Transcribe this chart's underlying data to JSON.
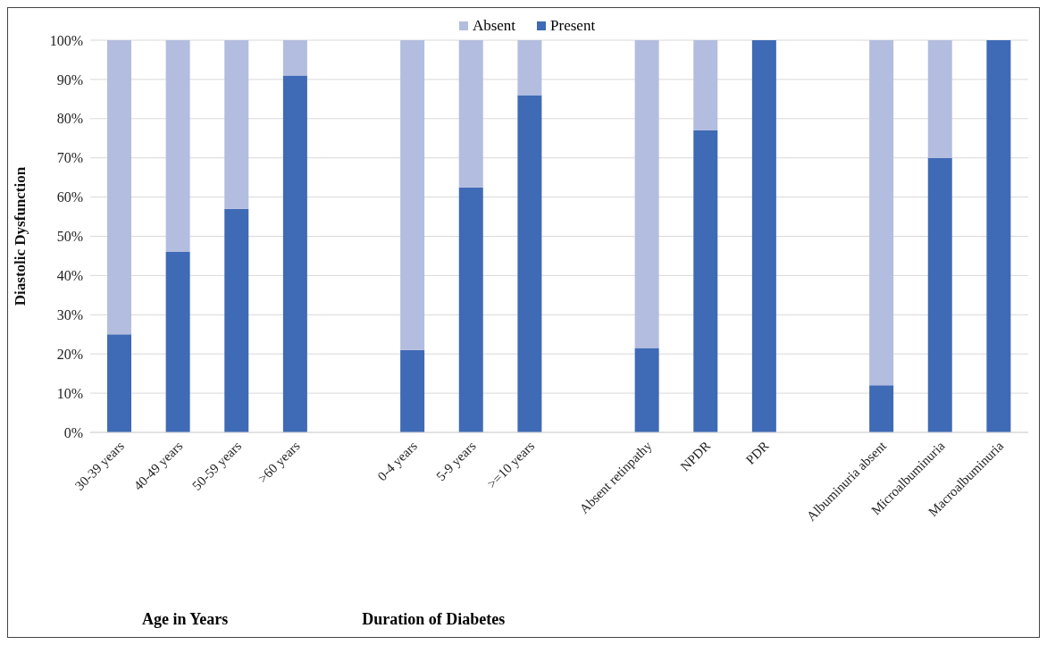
{
  "chart_data": {
    "type": "bar",
    "stacked": true,
    "ylabel": "Diastolic Dysfunction",
    "categories": [
      "30-39 years",
      "40-49 years",
      "50-59 years",
      ">60 years",
      null,
      "0-4 years",
      "5-9 years",
      ">=10 years",
      null,
      "Absent retinpathy",
      "NPDR",
      "PDR",
      null,
      "Albuminuria absent",
      "Microalbuminuria",
      "Macroalbuminuria"
    ],
    "series": [
      {
        "name": "Present",
        "color": "#3f6ab5",
        "values": [
          25,
          46,
          57,
          91,
          null,
          21,
          62.5,
          86,
          null,
          21.5,
          77,
          100,
          null,
          12,
          70,
          100
        ]
      },
      {
        "name": "Absent",
        "color": "#b3bddf",
        "values": [
          75,
          54,
          43,
          9,
          null,
          79,
          37.5,
          14,
          null,
          78.5,
          23,
          0,
          null,
          88,
          30,
          0
        ]
      }
    ],
    "ylim": [
      0,
      100
    ],
    "yticks": [
      {
        "value": 0,
        "label": "0%"
      },
      {
        "value": 10,
        "label": "10%"
      },
      {
        "value": 20,
        "label": "20%"
      },
      {
        "value": 30,
        "label": "30%"
      },
      {
        "value": 40,
        "label": "40%"
      },
      {
        "value": 50,
        "label": "50%"
      },
      {
        "value": 60,
        "label": "60%"
      },
      {
        "value": 70,
        "label": "70%"
      },
      {
        "value": 80,
        "label": "80%"
      },
      {
        "value": 90,
        "label": "90%"
      },
      {
        "value": 100,
        "label": "100%"
      }
    ],
    "grid": "y",
    "legend": "top",
    "annotations": [
      "Age in Years",
      "Duration of Diabetes"
    ]
  }
}
